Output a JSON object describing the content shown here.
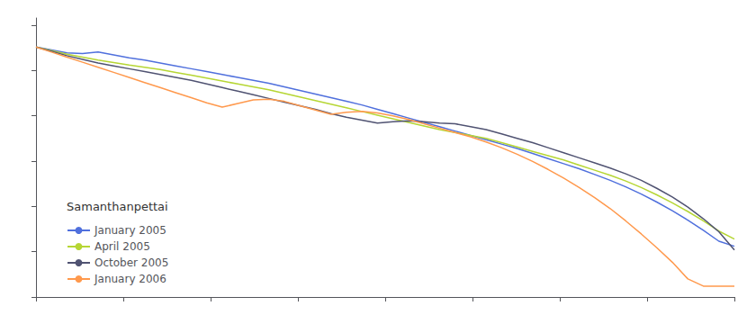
{
  "chart_data": {
    "type": "line",
    "title": "Samanthanpettai",
    "x": [
      0,
      10,
      20,
      30,
      40,
      50,
      60,
      70,
      80,
      90,
      100,
      110,
      120,
      130,
      140,
      150,
      160,
      170,
      180,
      190,
      200,
      210,
      220,
      230,
      240,
      250,
      260,
      270,
      280,
      290,
      300,
      310,
      320,
      330,
      340,
      350,
      360,
      370,
      380,
      390,
      400,
      410,
      420,
      430,
      440,
      450
    ],
    "series": [
      {
        "name": "January 2005",
        "values": [
          3.4,
          3.32,
          3.24,
          3.22,
          3.26,
          3.18,
          3.1,
          3.04,
          2.96,
          2.88,
          2.8,
          2.72,
          2.64,
          2.56,
          2.48,
          2.4,
          2.3,
          2.2,
          2.1,
          2.0,
          1.9,
          1.8,
          1.68,
          1.56,
          1.44,
          1.32,
          1.2,
          1.08,
          0.96,
          0.84,
          0.72,
          0.6,
          0.46,
          0.32,
          0.18,
          0.04,
          -0.12,
          -0.28,
          -0.46,
          -0.66,
          -0.88,
          -1.12,
          -1.38,
          -1.66,
          -1.96,
          -2.1
        ]
      },
      {
        "name": "April 2005",
        "values": [
          3.4,
          3.3,
          3.2,
          3.12,
          3.04,
          2.97,
          2.9,
          2.84,
          2.78,
          2.7,
          2.62,
          2.54,
          2.46,
          2.38,
          2.3,
          2.22,
          2.12,
          2.02,
          1.92,
          1.82,
          1.72,
          1.62,
          1.52,
          1.42,
          1.32,
          1.22,
          1.12,
          1.04,
          0.96,
          0.88,
          0.76,
          0.64,
          0.52,
          0.4,
          0.28,
          0.14,
          0.0,
          -0.14,
          -0.3,
          -0.48,
          -0.68,
          -0.9,
          -1.14,
          -1.4,
          -1.68,
          -1.9
        ]
      },
      {
        "name": "October 2005",
        "values": [
          3.4,
          3.28,
          3.16,
          3.06,
          2.96,
          2.88,
          2.8,
          2.72,
          2.64,
          2.56,
          2.48,
          2.38,
          2.28,
          2.18,
          2.08,
          1.98,
          1.88,
          1.78,
          1.68,
          1.56,
          1.46,
          1.38,
          1.3,
          1.34,
          1.36,
          1.34,
          1.3,
          1.28,
          1.2,
          1.12,
          1.0,
          0.88,
          0.76,
          0.62,
          0.48,
          0.34,
          0.2,
          0.06,
          -0.1,
          -0.28,
          -0.5,
          -0.74,
          -1.02,
          -1.34,
          -1.7,
          -2.2
        ]
      },
      {
        "name": "January 2006",
        "values": [
          3.4,
          3.26,
          3.12,
          2.98,
          2.84,
          2.7,
          2.56,
          2.42,
          2.28,
          2.14,
          2.0,
          1.86,
          1.74,
          1.84,
          1.94,
          1.96,
          1.9,
          1.78,
          1.66,
          1.54,
          1.6,
          1.62,
          1.58,
          1.5,
          1.4,
          1.28,
          1.16,
          1.04,
          0.92,
          0.78,
          0.62,
          0.44,
          0.24,
          0.02,
          -0.22,
          -0.48,
          -0.76,
          -1.06,
          -1.4,
          -1.76,
          -2.14,
          -2.54,
          -3.0,
          -3.2,
          -3.2,
          -3.2
        ]
      }
    ],
    "xlim": [
      0,
      450
    ],
    "xticks": [
      0,
      56.25,
      112.5,
      168.75,
      225,
      281.25,
      337.5,
      393.75,
      450
    ],
    "ylim": [
      -3.5,
      4.2
    ],
    "yticks": [
      -3.5,
      -2.25,
      -1,
      0.25,
      1.5,
      2.75,
      4
    ],
    "tick_labels": false,
    "grid": false,
    "legend": "lower left"
  }
}
